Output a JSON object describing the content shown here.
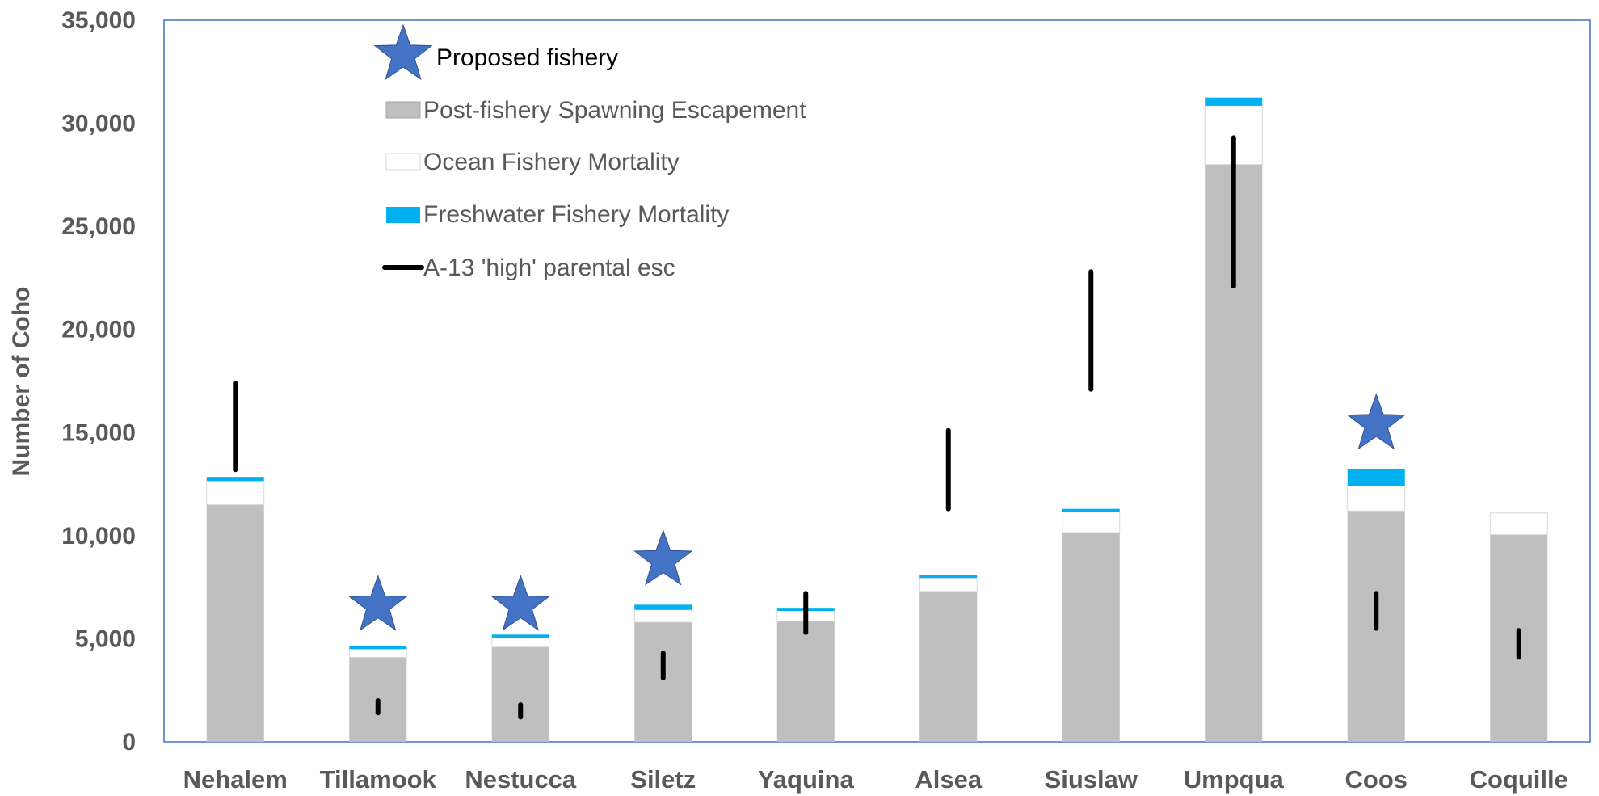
{
  "chart_data": {
    "type": "bar",
    "stacked": true,
    "ylabel": "Number of Coho",
    "ylim": [
      0,
      35000
    ],
    "yticks": [
      0,
      5000,
      10000,
      15000,
      20000,
      25000,
      30000,
      35000
    ],
    "ytick_labels": [
      "0",
      "5,000",
      "10,000",
      "15,000",
      "20,000",
      "25,000",
      "30,000",
      "35,000"
    ],
    "categories": [
      "Nehalem",
      "Tillamook",
      "Nestucca",
      "Siletz",
      "Yaquina",
      "Alsea",
      "Siuslaw",
      "Umpqua",
      "Coos",
      "Coquille"
    ],
    "series": [
      {
        "name": "Post-fishery Spawning Escapement",
        "color": "#bfbfbf",
        "values": [
          11500,
          4100,
          4600,
          5800,
          5850,
          7300,
          10150,
          28000,
          11200,
          10050
        ]
      },
      {
        "name": "Ocean Fishery Mortality",
        "color": "#ffffff",
        "values": [
          1150,
          400,
          450,
          600,
          500,
          650,
          1000,
          2850,
          1200,
          1050
        ]
      },
      {
        "name": "Freshwater Fishery Mortality",
        "color": "#00b0f0",
        "values": [
          200,
          150,
          150,
          250,
          150,
          150,
          150,
          400,
          850,
          0
        ]
      }
    ],
    "parental_esc": {
      "name": "A-13 'high' parental esc",
      "color": "#000000",
      "ranges": [
        [
          13200,
          17400
        ],
        [
          1400,
          2000
        ],
        [
          1200,
          1800
        ],
        [
          3100,
          4300
        ],
        [
          5300,
          7200
        ],
        [
          11300,
          15100
        ],
        [
          17100,
          22800
        ],
        [
          22100,
          29300
        ],
        [
          5500,
          7200
        ],
        [
          4100,
          5400
        ]
      ]
    },
    "proposed_fishery": {
      "name": "Proposed fishery",
      "color": "#4472c4",
      "categories": [
        "Tillamook",
        "Nestucca",
        "Siletz",
        "Coos"
      ],
      "values": [
        6600,
        6600,
        8800,
        15400
      ]
    },
    "legend": [
      "Proposed fishery",
      "Post-fishery Spawning Escapement",
      "Ocean Fishery Mortality",
      "Freshwater Fishery Mortality",
      "A-13 'high' parental esc"
    ],
    "legend_position": "top-left inside",
    "grid": false,
    "plot_border_color": "#4472c4"
  }
}
